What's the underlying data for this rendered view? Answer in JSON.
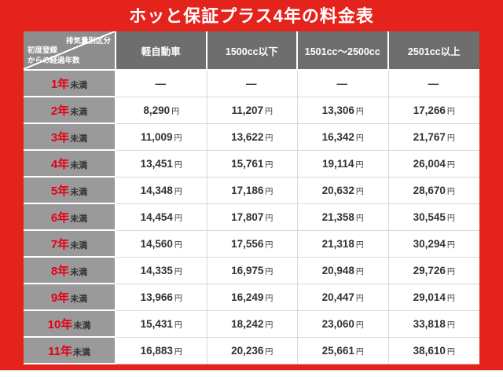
{
  "title": "ホッと保証プラス4年の料金表",
  "corner": {
    "top_right": "排気量別区分",
    "bottom_left_line1": "初度登録",
    "bottom_left_line2": "からの経過年数"
  },
  "columns": [
    "軽自動車",
    "1500cc以下",
    "1501cc〜2500cc",
    "2501cc以上"
  ],
  "rows": [
    {
      "year": "1年",
      "suffix": "未満",
      "cells": [
        {
          "v": "—",
          "u": ""
        },
        {
          "v": "—",
          "u": ""
        },
        {
          "v": "—",
          "u": ""
        },
        {
          "v": "—",
          "u": ""
        }
      ]
    },
    {
      "year": "2年",
      "suffix": "未満",
      "cells": [
        {
          "v": "8,290",
          "u": "円"
        },
        {
          "v": "11,207",
          "u": "円"
        },
        {
          "v": "13,306",
          "u": "円"
        },
        {
          "v": "17,266",
          "u": "円"
        }
      ]
    },
    {
      "year": "3年",
      "suffix": "未満",
      "cells": [
        {
          "v": "11,009",
          "u": "円"
        },
        {
          "v": "13,622",
          "u": "円"
        },
        {
          "v": "16,342",
          "u": "円"
        },
        {
          "v": "21,767",
          "u": "円"
        }
      ]
    },
    {
      "year": "4年",
      "suffix": "未満",
      "cells": [
        {
          "v": "13,451",
          "u": "円"
        },
        {
          "v": "15,761",
          "u": "円"
        },
        {
          "v": "19,114",
          "u": "円"
        },
        {
          "v": "26,004",
          "u": "円"
        }
      ]
    },
    {
      "year": "5年",
      "suffix": "未満",
      "cells": [
        {
          "v": "14,348",
          "u": "円"
        },
        {
          "v": "17,186",
          "u": "円"
        },
        {
          "v": "20,632",
          "u": "円"
        },
        {
          "v": "28,670",
          "u": "円"
        }
      ]
    },
    {
      "year": "6年",
      "suffix": "未満",
      "cells": [
        {
          "v": "14,454",
          "u": "円"
        },
        {
          "v": "17,807",
          "u": "円"
        },
        {
          "v": "21,358",
          "u": "円"
        },
        {
          "v": "30,545",
          "u": "円"
        }
      ]
    },
    {
      "year": "7年",
      "suffix": "未満",
      "cells": [
        {
          "v": "14,560",
          "u": "円"
        },
        {
          "v": "17,556",
          "u": "円"
        },
        {
          "v": "21,318",
          "u": "円"
        },
        {
          "v": "30,294",
          "u": "円"
        }
      ]
    },
    {
      "year": "8年",
      "suffix": "未満",
      "cells": [
        {
          "v": "14,335",
          "u": "円"
        },
        {
          "v": "16,975",
          "u": "円"
        },
        {
          "v": "20,948",
          "u": "円"
        },
        {
          "v": "29,726",
          "u": "円"
        }
      ]
    },
    {
      "year": "9年",
      "suffix": "未満",
      "cells": [
        {
          "v": "13,966",
          "u": "円"
        },
        {
          "v": "16,249",
          "u": "円"
        },
        {
          "v": "20,447",
          "u": "円"
        },
        {
          "v": "29,014",
          "u": "円"
        }
      ]
    },
    {
      "year": "10年",
      "suffix": "未満",
      "cells": [
        {
          "v": "15,431",
          "u": "円"
        },
        {
          "v": "18,242",
          "u": "円"
        },
        {
          "v": "23,060",
          "u": "円"
        },
        {
          "v": "33,818",
          "u": "円"
        }
      ]
    },
    {
      "year": "11年",
      "suffix": "未満",
      "cells": [
        {
          "v": "16,883",
          "u": "円"
        },
        {
          "v": "20,236",
          "u": "円"
        },
        {
          "v": "25,661",
          "u": "円"
        },
        {
          "v": "38,610",
          "u": "円"
        }
      ]
    }
  ],
  "colors": {
    "background_red": "#e5231d",
    "accent_red": "#e60012",
    "header_gray": "#6e6e6e",
    "rowhead_gray": "#9a9a9a",
    "grid_gray": "#d8d8d8"
  }
}
